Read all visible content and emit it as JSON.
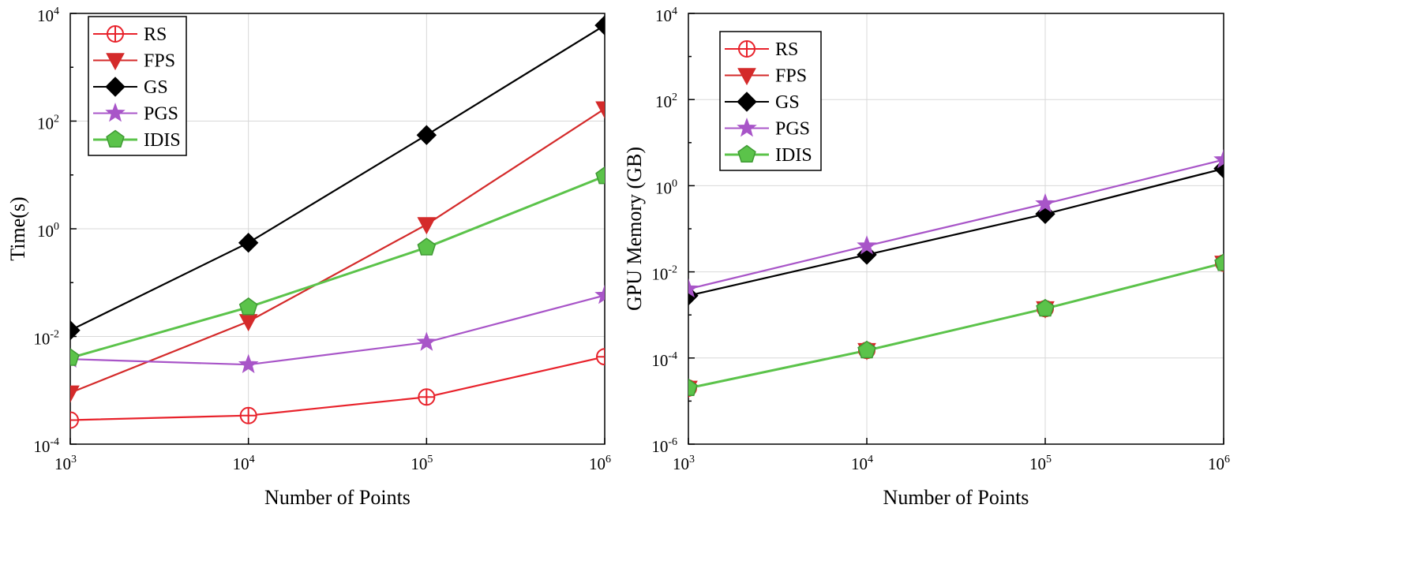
{
  "chart_data": [
    {
      "type": "line",
      "title": "",
      "xlabel": "Number of Points",
      "ylabel": "Time(s)",
      "xscale": "log",
      "yscale": "log",
      "xlim": [
        1000,
        1000000
      ],
      "ylim": [
        0.0001,
        10000
      ],
      "x": [
        1000,
        10000,
        100000,
        1000000
      ],
      "x_ticks": [
        {
          "base": "10",
          "exp": "3"
        },
        {
          "base": "10",
          "exp": "4"
        },
        {
          "base": "10",
          "exp": "5"
        },
        {
          "base": "10",
          "exp": "6"
        }
      ],
      "y_ticks": [
        {
          "base": "10",
          "exp": "-4"
        },
        {
          "base": "10",
          "exp": "-2"
        },
        {
          "base": "10",
          "exp": "0"
        },
        {
          "base": "10",
          "exp": "2"
        },
        {
          "base": "10",
          "exp": "4"
        }
      ],
      "grid": true,
      "legend_position": "top-left",
      "series": [
        {
          "name": "RS",
          "color": "#e8222b",
          "marker": "circle-plus",
          "values": [
            0.00028,
            0.00034,
            0.00075,
            0.0042
          ]
        },
        {
          "name": "FPS",
          "color": "#d42a2a",
          "marker": "triangle-down",
          "values": [
            0.0009,
            0.019,
            1.2,
            170
          ]
        },
        {
          "name": "GS",
          "color": "#000000",
          "marker": "diamond",
          "values": [
            0.013,
            0.55,
            55,
            6000
          ]
        },
        {
          "name": "PGS",
          "color": "#a855c8",
          "marker": "star",
          "values": [
            0.0038,
            0.003,
            0.0078,
            0.058
          ]
        },
        {
          "name": "IDIS",
          "color": "#5bc34a",
          "marker": "pentagon",
          "values": [
            0.004,
            0.035,
            0.45,
            9.5
          ]
        }
      ]
    },
    {
      "type": "line",
      "title": "",
      "xlabel": "Number of Points",
      "ylabel": "GPU Memory (GB)",
      "xscale": "log",
      "yscale": "log",
      "xlim": [
        1000,
        1000000
      ],
      "ylim": [
        1e-06,
        10000
      ],
      "x": [
        1000,
        10000,
        100000,
        1000000
      ],
      "x_ticks": [
        {
          "base": "10",
          "exp": "3"
        },
        {
          "base": "10",
          "exp": "4"
        },
        {
          "base": "10",
          "exp": "5"
        },
        {
          "base": "10",
          "exp": "6"
        }
      ],
      "y_ticks": [
        {
          "base": "10",
          "exp": "-6"
        },
        {
          "base": "10",
          "exp": "-4"
        },
        {
          "base": "10",
          "exp": "-2"
        },
        {
          "base": "10",
          "exp": "0"
        },
        {
          "base": "10",
          "exp": "2"
        },
        {
          "base": "10",
          "exp": "4"
        }
      ],
      "grid": true,
      "legend_position": "top-left",
      "series": [
        {
          "name": "RS",
          "color": "#e8222b",
          "marker": "circle-plus",
          "values": [
            2e-05,
            0.00015,
            0.0014,
            0.016
          ]
        },
        {
          "name": "FPS",
          "color": "#d42a2a",
          "marker": "triangle-down",
          "values": [
            2e-05,
            0.00015,
            0.0014,
            0.016
          ]
        },
        {
          "name": "GS",
          "color": "#000000",
          "marker": "diamond",
          "values": [
            0.0028,
            0.025,
            0.22,
            2.5
          ]
        },
        {
          "name": "PGS",
          "color": "#a855c8",
          "marker": "star",
          "values": [
            0.004,
            0.04,
            0.38,
            4.0
          ]
        },
        {
          "name": "IDIS",
          "color": "#5bc34a",
          "marker": "pentagon",
          "values": [
            2e-05,
            0.00015,
            0.0014,
            0.016
          ]
        }
      ]
    }
  ]
}
